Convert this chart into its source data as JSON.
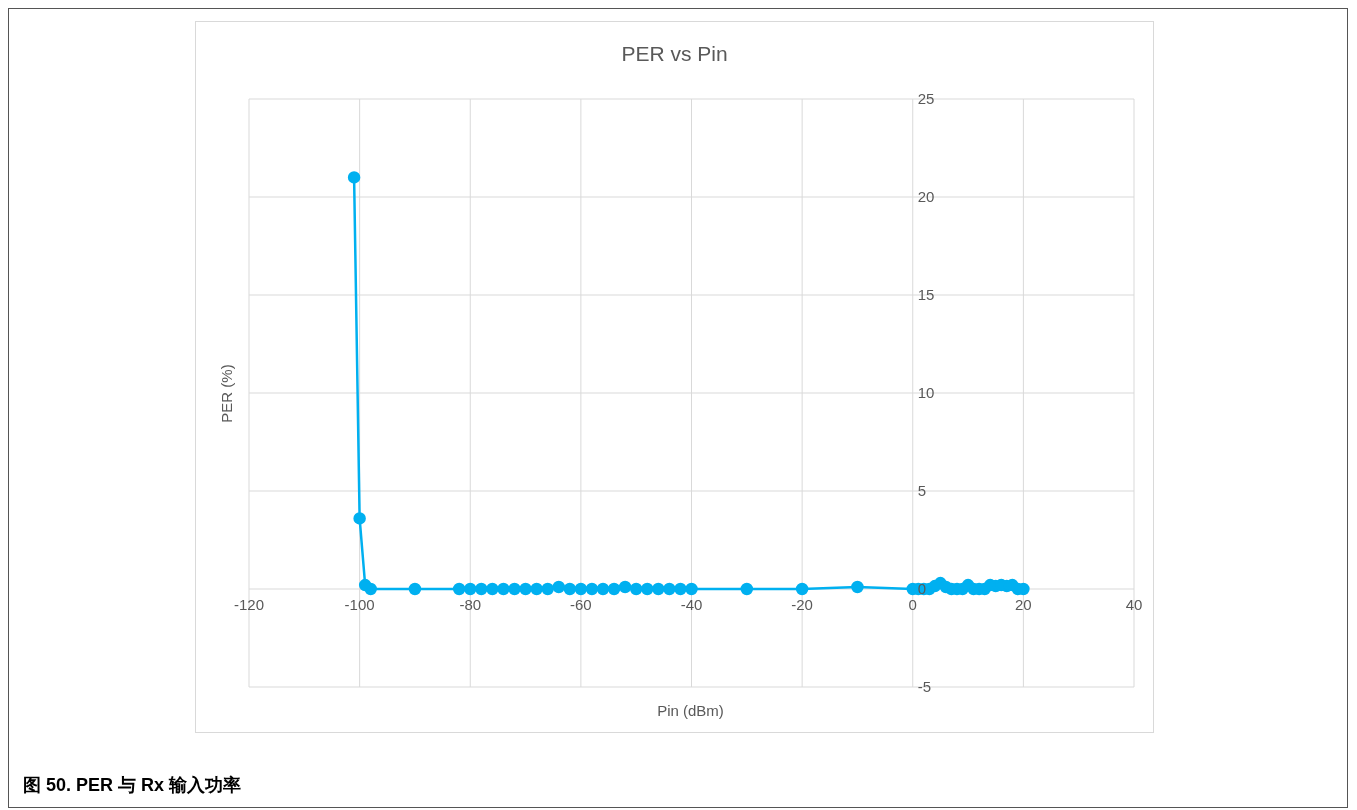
{
  "chart_data": {
    "type": "line",
    "title": "PER vs Pin",
    "xlabel": "Pin (dBm)",
    "ylabel": "PER (%)",
    "annotations": [
      "图 50. PER 与 Rx 输入功率"
    ],
    "series": [
      {
        "color": "#00b0f0",
        "x": [
          -101,
          -100,
          -99,
          -98,
          -90,
          -82,
          -80,
          -78,
          -76,
          -74,
          -72,
          -70,
          -68,
          -66,
          -64,
          -62,
          -60,
          -58,
          -56,
          -54,
          -52,
          -50,
          -48,
          -46,
          -44,
          -42,
          -40,
          -30,
          -20,
          -10,
          0,
          1,
          2,
          3,
          4,
          5,
          6,
          7,
          8,
          9,
          10,
          11,
          12,
          13,
          14,
          15,
          16,
          17,
          18,
          19,
          20
        ],
        "values": [
          21,
          3.6,
          0.2,
          0,
          0,
          0,
          0,
          0,
          0,
          0,
          0,
          0,
          0,
          0,
          0.1,
          0,
          0,
          0,
          0,
          0,
          0.1,
          0,
          0,
          0,
          0,
          0,
          0,
          0,
          0,
          0.1,
          0,
          0,
          0,
          0,
          0.15,
          0.3,
          0.1,
          0,
          0,
          0,
          0.2,
          0,
          0,
          0,
          0.2,
          0.15,
          0.2,
          0.15,
          0.2,
          0,
          0
        ]
      }
    ],
    "xlim": [
      -120,
      40
    ],
    "xticks": [
      -120,
      -100,
      -80,
      -60,
      -40,
      -20,
      0,
      20,
      40
    ],
    "ylim": [
      -5,
      25
    ],
    "yticks": [
      -5,
      0,
      5,
      10,
      15,
      20,
      25
    ],
    "grid": true,
    "legend": false,
    "marker": "circle",
    "line_style": "solid"
  }
}
